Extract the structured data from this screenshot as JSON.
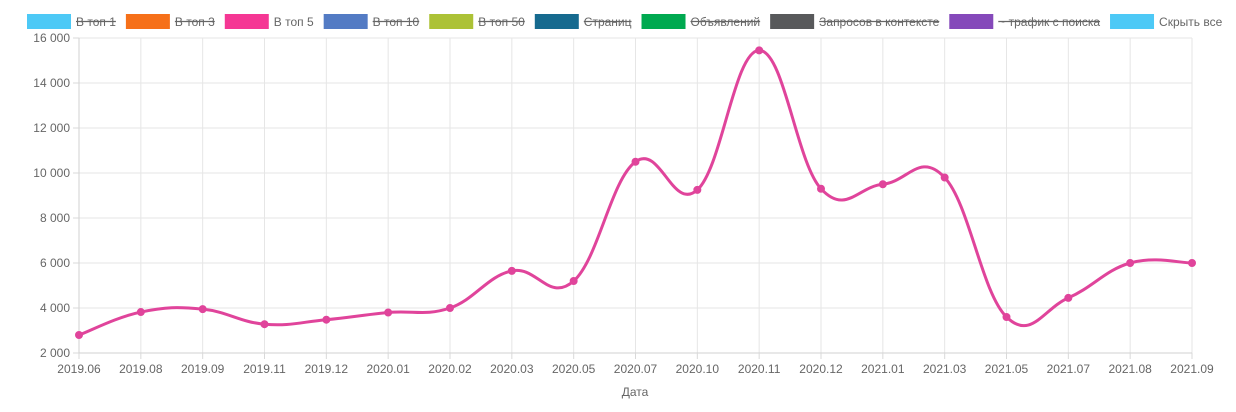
{
  "legend": [
    {
      "label": "В топ 1",
      "color": "#4dc9f6",
      "hidden": true
    },
    {
      "label": "В топ 3",
      "color": "#f67019",
      "hidden": true
    },
    {
      "label": "В топ 5",
      "color": "#f53794",
      "hidden": false
    },
    {
      "label": "В топ 10",
      "color": "#537bc4",
      "hidden": true
    },
    {
      "label": "В топ 50",
      "color": "#acc236",
      "hidden": true
    },
    {
      "label": "Страниц",
      "color": "#166a8f",
      "hidden": true
    },
    {
      "label": "Объявлений",
      "color": "#00a950",
      "hidden": true
    },
    {
      "label": "Запросов в контексте",
      "color": "#58595b",
      "hidden": true
    },
    {
      "label": "~ трафик с поиска",
      "color": "#8549ba",
      "hidden": true
    },
    {
      "label": "Скрыть все",
      "color": "#4dc9f6",
      "hidden": false
    }
  ],
  "chart_data": {
    "type": "line",
    "title": "",
    "xlabel": "Дата",
    "ylabel": "",
    "ylim": [
      2000,
      16000
    ],
    "y_ticks": [
      "16 000",
      "14 000",
      "12 000",
      "10 000",
      "8 000",
      "6 000",
      "4 000",
      "2 000"
    ],
    "y_tick_values": [
      16000,
      14000,
      12000,
      10000,
      8000,
      6000,
      4000,
      2000
    ],
    "categories": [
      "2019.06",
      "2019.08",
      "2019.09",
      "2019.11",
      "2019.12",
      "2020.01",
      "2020.02",
      "2020.03",
      "2020.05",
      "2020.07",
      "2020.10",
      "2020.11",
      "2020.12",
      "2021.01",
      "2021.03",
      "2021.05",
      "2021.07",
      "2021.08",
      "2021.09"
    ],
    "series": [
      {
        "name": "В топ 5",
        "color": "#e0449b",
        "values": [
          2800,
          3820,
          3950,
          3280,
          3480,
          3800,
          4000,
          5650,
          5200,
          10500,
          9250,
          15450,
          9300,
          9500,
          9800,
          3600,
          4450,
          6000,
          6000
        ]
      }
    ],
    "grid": true,
    "legend_position": "top"
  }
}
